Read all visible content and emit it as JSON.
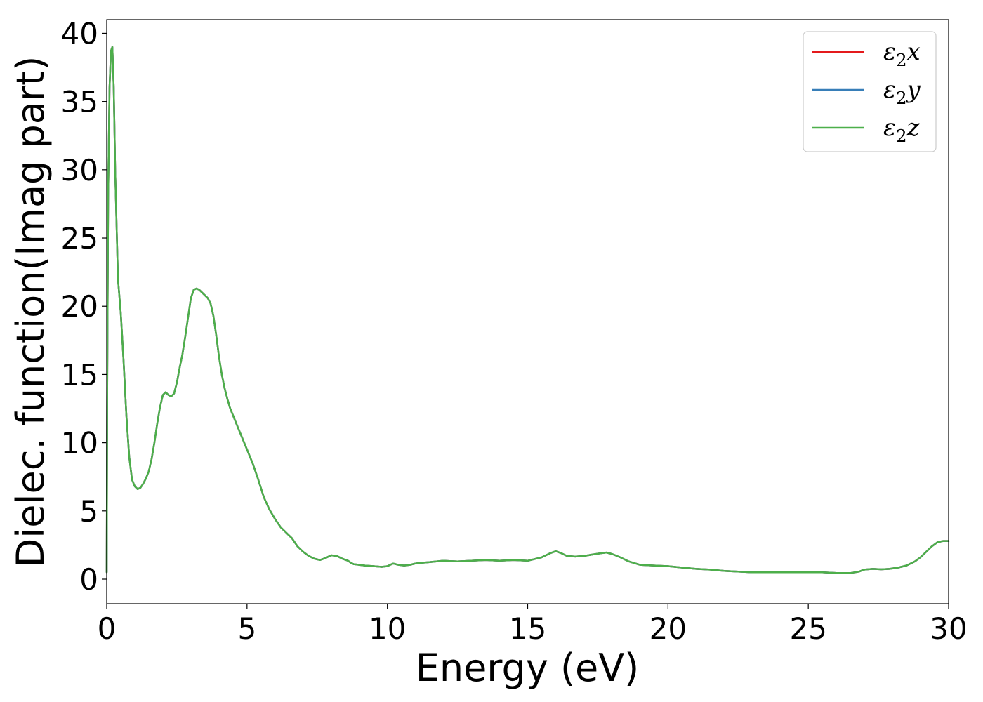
{
  "chart_data": {
    "type": "line",
    "xlabel": "Energy (eV)",
    "ylabel": "Dielec. function(Imag part)",
    "xlim": [
      0,
      30
    ],
    "ylim": [
      -1.8,
      41
    ],
    "xticks": [
      0,
      5,
      10,
      15,
      20,
      25,
      30
    ],
    "yticks": [
      0,
      5,
      10,
      15,
      20,
      25,
      30,
      35,
      40
    ],
    "grid": false,
    "legend_position": "top-right",
    "series": [
      {
        "name": "ε₂x",
        "legend_base": "ε",
        "legend_sub": "2",
        "legend_var": "x",
        "color": "#e41a1c",
        "x": [
          0,
          0.02,
          0.05,
          0.1,
          0.15,
          0.2,
          0.25,
          0.3,
          0.4,
          0.5,
          0.6,
          0.7,
          0.8,
          0.9,
          1.0,
          1.1,
          1.2,
          1.3,
          1.4,
          1.5,
          1.6,
          1.7,
          1.8,
          1.9,
          2.0,
          2.1,
          2.2,
          2.3,
          2.4,
          2.5,
          2.6,
          2.7,
          2.8,
          2.9,
          3.0,
          3.1,
          3.2,
          3.3,
          3.4,
          3.5,
          3.6,
          3.7,
          3.8,
          3.9,
          4.0,
          4.1,
          4.2,
          4.3,
          4.4,
          4.5,
          4.6,
          4.7,
          4.8,
          4.9,
          5.0,
          5.2,
          5.4,
          5.6,
          5.8,
          6.0,
          6.2,
          6.4,
          6.6,
          6.8,
          7.0,
          7.2,
          7.4,
          7.6,
          7.8,
          8.0,
          8.2,
          8.4,
          8.6,
          8.7,
          8.8,
          9.0,
          9.2,
          9.5,
          9.8,
          10.0,
          10.2,
          10.4,
          10.6,
          10.8,
          11.0,
          11.2,
          11.5,
          12.0,
          12.5,
          13.0,
          13.5,
          14.0,
          14.5,
          15.0,
          15.5,
          15.8,
          16.0,
          16.2,
          16.4,
          16.7,
          17.0,
          17.3,
          17.6,
          17.8,
          18.0,
          18.3,
          18.6,
          19.0,
          19.5,
          20.0,
          20.5,
          21.0,
          21.5,
          22.0,
          22.5,
          23.0,
          23.5,
          24.0,
          24.5,
          25.0,
          25.5,
          26.0,
          26.5,
          26.8,
          27.0,
          27.3,
          27.6,
          27.9,
          28.2,
          28.5,
          28.8,
          29.0,
          29.2,
          29.4,
          29.6,
          29.8,
          30.0
        ],
        "y": [
          0.5,
          15.0,
          28.0,
          36.0,
          38.7,
          39.0,
          36.0,
          30.0,
          22.0,
          19.5,
          16.0,
          12.0,
          9.0,
          7.3,
          6.8,
          6.6,
          6.7,
          7.0,
          7.4,
          7.9,
          8.8,
          10.0,
          11.4,
          12.6,
          13.5,
          13.7,
          13.5,
          13.4,
          13.6,
          14.4,
          15.5,
          16.5,
          17.8,
          19.2,
          20.6,
          21.2,
          21.3,
          21.2,
          21.0,
          20.8,
          20.6,
          20.2,
          19.3,
          17.9,
          16.3,
          15.0,
          14.0,
          13.2,
          12.5,
          12.0,
          11.5,
          11.0,
          10.5,
          10.0,
          9.5,
          8.5,
          7.3,
          6.0,
          5.1,
          4.4,
          3.8,
          3.4,
          3.0,
          2.4,
          2.0,
          1.7,
          1.5,
          1.4,
          1.55,
          1.75,
          1.7,
          1.5,
          1.35,
          1.2,
          1.1,
          1.05,
          1.0,
          0.95,
          0.9,
          0.95,
          1.15,
          1.05,
          1.0,
          1.05,
          1.15,
          1.2,
          1.25,
          1.35,
          1.3,
          1.35,
          1.4,
          1.35,
          1.4,
          1.35,
          1.6,
          1.9,
          2.05,
          1.9,
          1.7,
          1.65,
          1.7,
          1.8,
          1.9,
          1.95,
          1.85,
          1.6,
          1.3,
          1.05,
          1.0,
          0.95,
          0.85,
          0.75,
          0.7,
          0.6,
          0.55,
          0.5,
          0.5,
          0.5,
          0.5,
          0.5,
          0.5,
          0.45,
          0.45,
          0.55,
          0.7,
          0.75,
          0.72,
          0.75,
          0.85,
          1.0,
          1.3,
          1.6,
          2.0,
          2.4,
          2.7,
          2.8,
          2.8
        ]
      },
      {
        "name": "ε₂y",
        "legend_base": "ε",
        "legend_sub": "2",
        "legend_var": "y",
        "color": "#377eb8",
        "x": [
          0,
          0.02,
          0.05,
          0.1,
          0.15,
          0.2,
          0.25,
          0.3,
          0.4,
          0.5,
          0.6,
          0.7,
          0.8,
          0.9,
          1.0,
          1.1,
          1.2,
          1.3,
          1.4,
          1.5,
          1.6,
          1.7,
          1.8,
          1.9,
          2.0,
          2.1,
          2.2,
          2.3,
          2.4,
          2.5,
          2.6,
          2.7,
          2.8,
          2.9,
          3.0,
          3.1,
          3.2,
          3.3,
          3.4,
          3.5,
          3.6,
          3.7,
          3.8,
          3.9,
          4.0,
          4.1,
          4.2,
          4.3,
          4.4,
          4.5,
          4.6,
          4.7,
          4.8,
          4.9,
          5.0,
          5.2,
          5.4,
          5.6,
          5.8,
          6.0,
          6.2,
          6.4,
          6.6,
          6.8,
          7.0,
          7.2,
          7.4,
          7.6,
          7.8,
          8.0,
          8.2,
          8.4,
          8.6,
          8.7,
          8.8,
          9.0,
          9.2,
          9.5,
          9.8,
          10.0,
          10.2,
          10.4,
          10.6,
          10.8,
          11.0,
          11.2,
          11.5,
          12.0,
          12.5,
          13.0,
          13.5,
          14.0,
          14.5,
          15.0,
          15.5,
          15.8,
          16.0,
          16.2,
          16.4,
          16.7,
          17.0,
          17.3,
          17.6,
          17.8,
          18.0,
          18.3,
          18.6,
          19.0,
          19.5,
          20.0,
          20.5,
          21.0,
          21.5,
          22.0,
          22.5,
          23.0,
          23.5,
          24.0,
          24.5,
          25.0,
          25.5,
          26.0,
          26.5,
          26.8,
          27.0,
          27.3,
          27.6,
          27.9,
          28.2,
          28.5,
          28.8,
          29.0,
          29.2,
          29.4,
          29.6,
          29.8,
          30.0
        ],
        "y": [
          0.5,
          15.0,
          28.0,
          36.0,
          38.7,
          39.0,
          36.0,
          30.0,
          22.0,
          19.5,
          16.0,
          12.0,
          9.0,
          7.3,
          6.8,
          6.6,
          6.7,
          7.0,
          7.4,
          7.9,
          8.8,
          10.0,
          11.4,
          12.6,
          13.5,
          13.7,
          13.5,
          13.4,
          13.6,
          14.4,
          15.5,
          16.5,
          17.8,
          19.2,
          20.6,
          21.2,
          21.3,
          21.2,
          21.0,
          20.8,
          20.6,
          20.2,
          19.3,
          17.9,
          16.3,
          15.0,
          14.0,
          13.2,
          12.5,
          12.0,
          11.5,
          11.0,
          10.5,
          10.0,
          9.5,
          8.5,
          7.3,
          6.0,
          5.1,
          4.4,
          3.8,
          3.4,
          3.0,
          2.4,
          2.0,
          1.7,
          1.5,
          1.4,
          1.55,
          1.75,
          1.7,
          1.5,
          1.35,
          1.2,
          1.1,
          1.05,
          1.0,
          0.95,
          0.9,
          0.95,
          1.15,
          1.05,
          1.0,
          1.05,
          1.15,
          1.2,
          1.25,
          1.35,
          1.3,
          1.35,
          1.4,
          1.35,
          1.4,
          1.35,
          1.6,
          1.9,
          2.05,
          1.9,
          1.7,
          1.65,
          1.7,
          1.8,
          1.9,
          1.95,
          1.85,
          1.6,
          1.3,
          1.05,
          1.0,
          0.95,
          0.85,
          0.75,
          0.7,
          0.6,
          0.55,
          0.5,
          0.5,
          0.5,
          0.5,
          0.5,
          0.5,
          0.45,
          0.45,
          0.55,
          0.7,
          0.75,
          0.72,
          0.75,
          0.85,
          1.0,
          1.3,
          1.6,
          2.0,
          2.4,
          2.7,
          2.8,
          2.8
        ]
      },
      {
        "name": "ε₂z",
        "legend_base": "ε",
        "legend_sub": "2",
        "legend_var": "z",
        "color": "#4daf4a",
        "x": [
          0,
          0.02,
          0.05,
          0.1,
          0.15,
          0.2,
          0.25,
          0.3,
          0.4,
          0.5,
          0.6,
          0.7,
          0.8,
          0.9,
          1.0,
          1.1,
          1.2,
          1.3,
          1.4,
          1.5,
          1.6,
          1.7,
          1.8,
          1.9,
          2.0,
          2.1,
          2.2,
          2.3,
          2.4,
          2.5,
          2.6,
          2.7,
          2.8,
          2.9,
          3.0,
          3.1,
          3.2,
          3.3,
          3.4,
          3.5,
          3.6,
          3.7,
          3.8,
          3.9,
          4.0,
          4.1,
          4.2,
          4.3,
          4.4,
          4.5,
          4.6,
          4.7,
          4.8,
          4.9,
          5.0,
          5.2,
          5.4,
          5.6,
          5.8,
          6.0,
          6.2,
          6.4,
          6.6,
          6.8,
          7.0,
          7.2,
          7.4,
          7.6,
          7.8,
          8.0,
          8.2,
          8.4,
          8.6,
          8.7,
          8.8,
          9.0,
          9.2,
          9.5,
          9.8,
          10.0,
          10.2,
          10.4,
          10.6,
          10.8,
          11.0,
          11.2,
          11.5,
          12.0,
          12.5,
          13.0,
          13.5,
          14.0,
          14.5,
          15.0,
          15.5,
          15.8,
          16.0,
          16.2,
          16.4,
          16.7,
          17.0,
          17.3,
          17.6,
          17.8,
          18.0,
          18.3,
          18.6,
          19.0,
          19.5,
          20.0,
          20.5,
          21.0,
          21.5,
          22.0,
          22.5,
          23.0,
          23.5,
          24.0,
          24.5,
          25.0,
          25.5,
          26.0,
          26.5,
          26.8,
          27.0,
          27.3,
          27.6,
          27.9,
          28.2,
          28.5,
          28.8,
          29.0,
          29.2,
          29.4,
          29.6,
          29.8,
          30.0
        ],
        "y": [
          0.5,
          15.0,
          28.0,
          36.0,
          38.7,
          39.0,
          36.0,
          30.0,
          22.0,
          19.5,
          16.0,
          12.0,
          9.0,
          7.3,
          6.8,
          6.6,
          6.7,
          7.0,
          7.4,
          7.9,
          8.8,
          10.0,
          11.4,
          12.6,
          13.5,
          13.7,
          13.5,
          13.4,
          13.6,
          14.4,
          15.5,
          16.5,
          17.8,
          19.2,
          20.6,
          21.2,
          21.3,
          21.2,
          21.0,
          20.8,
          20.6,
          20.2,
          19.3,
          17.9,
          16.3,
          15.0,
          14.0,
          13.2,
          12.5,
          12.0,
          11.5,
          11.0,
          10.5,
          10.0,
          9.5,
          8.5,
          7.3,
          6.0,
          5.1,
          4.4,
          3.8,
          3.4,
          3.0,
          2.4,
          2.0,
          1.7,
          1.5,
          1.4,
          1.55,
          1.75,
          1.7,
          1.5,
          1.35,
          1.2,
          1.1,
          1.05,
          1.0,
          0.95,
          0.9,
          0.95,
          1.15,
          1.05,
          1.0,
          1.05,
          1.15,
          1.2,
          1.25,
          1.35,
          1.3,
          1.35,
          1.4,
          1.35,
          1.4,
          1.35,
          1.6,
          1.9,
          2.05,
          1.9,
          1.7,
          1.65,
          1.7,
          1.8,
          1.9,
          1.95,
          1.85,
          1.6,
          1.3,
          1.05,
          1.0,
          0.95,
          0.85,
          0.75,
          0.7,
          0.6,
          0.55,
          0.5,
          0.5,
          0.5,
          0.5,
          0.5,
          0.5,
          0.45,
          0.45,
          0.55,
          0.7,
          0.75,
          0.72,
          0.75,
          0.85,
          1.0,
          1.3,
          1.6,
          2.0,
          2.4,
          2.7,
          2.8,
          2.8
        ]
      }
    ]
  }
}
